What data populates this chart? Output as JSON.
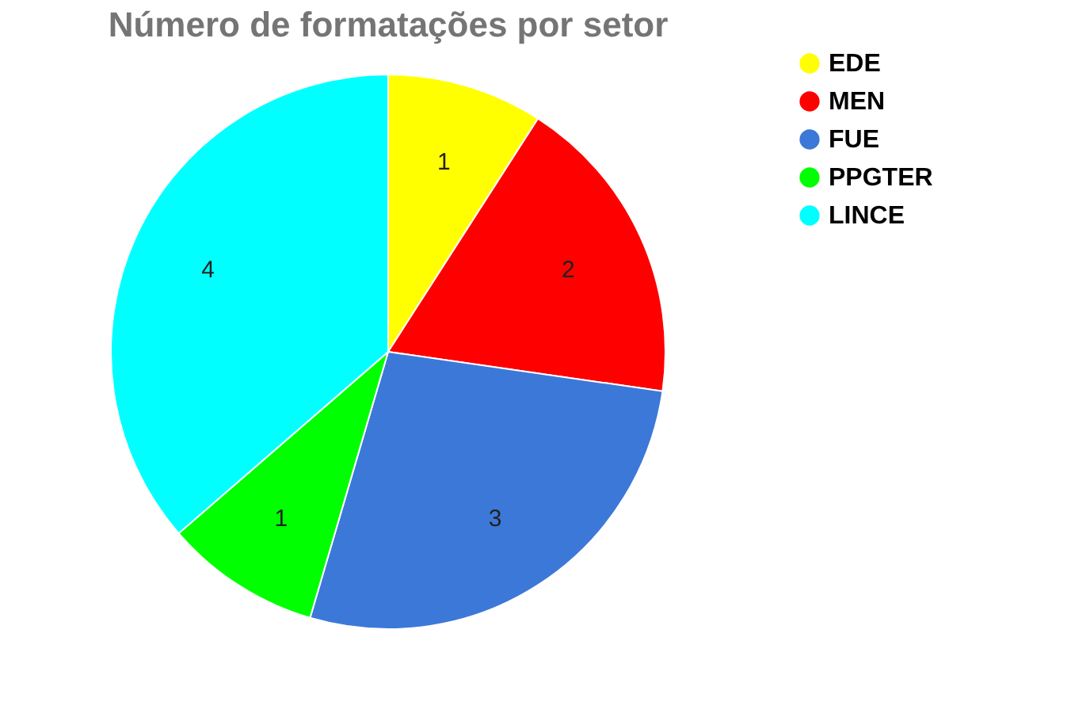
{
  "chart_data": {
    "type": "pie",
    "title": "Número de formatações por setor",
    "categories": [
      "EDE",
      "MEN",
      "FUE",
      "PPGTER",
      "LINCE"
    ],
    "values": [
      1,
      2,
      3,
      1,
      4
    ],
    "colors": [
      "#ffff00",
      "#ff0000",
      "#3c78d8",
      "#00ff00",
      "#00ffff"
    ],
    "data_labels": true,
    "legend": "top right"
  }
}
